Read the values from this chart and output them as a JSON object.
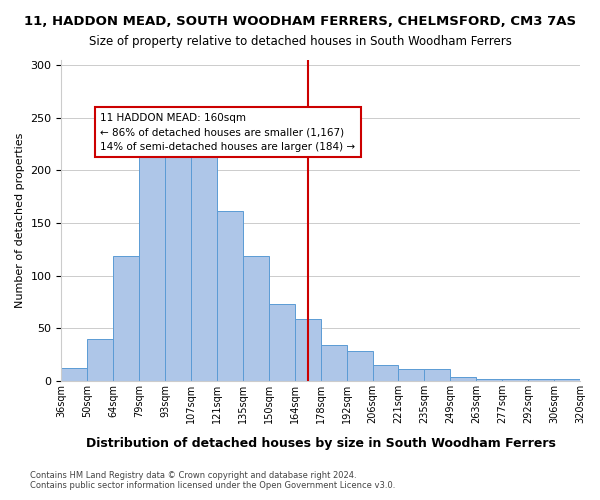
{
  "title": "11, HADDON MEAD, SOUTH WOODHAM FERRERS, CHELMSFORD, CM3 7AS",
  "subtitle": "Size of property relative to detached houses in South Woodham Ferrers",
  "xlabel": "Distribution of detached houses by size in South Woodham Ferrers",
  "ylabel": "Number of detached properties",
  "footer_line1": "Contains HM Land Registry data © Crown copyright and database right 2024.",
  "footer_line2": "Contains public sector information licensed under the Open Government Licence v3.0.",
  "bin_labels": [
    "36sqm",
    "50sqm",
    "64sqm",
    "79sqm",
    "93sqm",
    "107sqm",
    "121sqm",
    "135sqm",
    "150sqm",
    "164sqm",
    "178sqm",
    "192sqm",
    "206sqm",
    "221sqm",
    "235sqm",
    "249sqm",
    "263sqm",
    "277sqm",
    "292sqm",
    "306sqm",
    "320sqm"
  ],
  "bar_heights": [
    12,
    40,
    119,
    220,
    232,
    218,
    161,
    119,
    73,
    59,
    34,
    28,
    15,
    11,
    11,
    4,
    2,
    2,
    2,
    2
  ],
  "bar_color": "#aec6e8",
  "bar_edge_color": "#5b9bd5",
  "vline_x": 9.5,
  "vline_color": "#cc0000",
  "annotation_title": "11 HADDON MEAD: 160sqm",
  "annotation_line1": "← 86% of detached houses are smaller (1,167)",
  "annotation_line2": "14% of semi-detached houses are larger (184) →",
  "annotation_box_color": "#ffffff",
  "annotation_box_edge": "#cc0000",
  "ylim": [
    0,
    305
  ],
  "yticks": [
    0,
    50,
    100,
    150,
    200,
    250,
    300
  ],
  "background_color": "#ffffff",
  "grid_color": "#cccccc"
}
